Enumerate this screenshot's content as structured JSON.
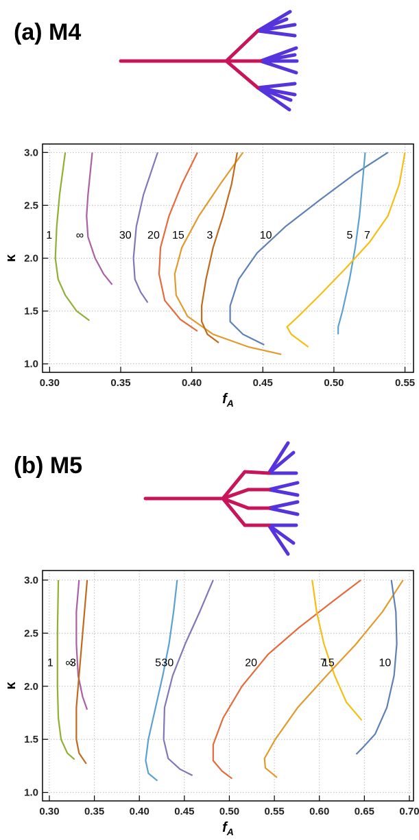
{
  "chart_data": [
    {
      "type": "line",
      "title": "(a) M4",
      "x_label": "f",
      "x_label_subscript": "A",
      "y_label": "κ",
      "xlim": [
        0.295,
        0.556
      ],
      "ylim": [
        0.92,
        3.08
      ],
      "grid": true,
      "xticks": [
        {
          "value": 0.3,
          "label": "0.30"
        },
        {
          "value": 0.35,
          "label": "0.35"
        },
        {
          "value": 0.4,
          "label": "0.40"
        },
        {
          "value": 0.45,
          "label": "0.45"
        },
        {
          "value": 0.5,
          "label": "0.50"
        },
        {
          "value": 0.55,
          "label": "0.55"
        }
      ],
      "yticks": [
        {
          "value": 1,
          "label": "1.0"
        },
        {
          "value": 1.5,
          "label": "1.5"
        },
        {
          "value": 2,
          "label": "2.0"
        },
        {
          "value": 2.5,
          "label": "2.5"
        },
        {
          "value": 3,
          "label": "3.0"
        }
      ],
      "series": [
        {
          "name": "1",
          "color": "#8fb032",
          "x": [
            0.311,
            0.307,
            0.305,
            0.304,
            0.306,
            0.311,
            0.319,
            0.328
          ],
          "values": [
            3.0,
            2.6,
            2.3,
            2.0,
            1.8,
            1.65,
            1.5,
            1.41
          ]
        },
        {
          "name": "∞",
          "color": "#a960a5",
          "x": [
            0.33,
            0.327,
            0.326,
            0.327,
            0.332,
            0.338,
            0.344
          ],
          "values": [
            3.0,
            2.6,
            2.4,
            2.2,
            2.0,
            1.85,
            1.75
          ]
        },
        {
          "name": "30",
          "color": "#8176b8",
          "x": [
            0.376,
            0.366,
            0.361,
            0.359,
            0.36,
            0.364,
            0.369
          ],
          "values": [
            3.0,
            2.6,
            2.3,
            2.0,
            1.8,
            1.68,
            1.58
          ]
        },
        {
          "name": "20",
          "color": "#e56a3c",
          "x": [
            0.404,
            0.393,
            0.384,
            0.378,
            0.377,
            0.381,
            0.392,
            0.404
          ],
          "values": [
            3.0,
            2.7,
            2.4,
            2.1,
            1.85,
            1.6,
            1.42,
            1.31
          ]
        },
        {
          "name": "15",
          "color": "#e19a2c",
          "x": [
            0.436,
            0.42,
            0.405,
            0.393,
            0.388,
            0.389,
            0.397,
            0.415,
            0.44,
            0.463
          ],
          "values": [
            3.0,
            2.7,
            2.4,
            2.1,
            1.85,
            1.65,
            1.45,
            1.28,
            1.16,
            1.09
          ]
        },
        {
          "name": "3",
          "color": "#c06a1e",
          "x": [
            0.432,
            0.428,
            0.422,
            0.415,
            0.41,
            0.407,
            0.407,
            0.411,
            0.419
          ],
          "values": [
            3.0,
            2.7,
            2.4,
            2.1,
            1.8,
            1.55,
            1.4,
            1.28,
            1.2
          ]
        },
        {
          "name": "10",
          "color": "#5e81b5",
          "x": [
            0.538,
            0.515,
            0.49,
            0.466,
            0.446,
            0.433,
            0.427,
            0.427,
            0.436,
            0.451
          ],
          "values": [
            3.0,
            2.8,
            2.55,
            2.3,
            2.05,
            1.8,
            1.55,
            1.4,
            1.28,
            1.18
          ]
        },
        {
          "name": "5",
          "color": "#5ba1cf",
          "x": [
            0.522,
            0.52,
            0.518,
            0.515,
            0.511,
            0.506,
            0.503,
            0.503
          ],
          "values": [
            3.0,
            2.7,
            2.4,
            2.1,
            1.8,
            1.5,
            1.35,
            1.28
          ]
        },
        {
          "name": "7",
          "color": "#f5be12",
          "x": [
            0.55,
            0.546,
            0.538,
            0.525,
            0.508,
            0.49,
            0.475,
            0.467,
            0.47,
            0.482
          ],
          "values": [
            3.0,
            2.7,
            2.4,
            2.15,
            1.9,
            1.65,
            1.45,
            1.35,
            1.28,
            1.16
          ]
        }
      ]
    },
    {
      "type": "line",
      "title": "(b) M5",
      "x_label": "f",
      "x_label_subscript": "A",
      "y_label": "κ",
      "xlim": [
        0.2924,
        0.7046
      ],
      "ylim": [
        0.92,
        3.09
      ],
      "grid": true,
      "xticks": [
        {
          "value": 0.3,
          "label": "0.30"
        },
        {
          "value": 0.35,
          "label": "0.35"
        },
        {
          "value": 0.4,
          "label": "0.40"
        },
        {
          "value": 0.45,
          "label": "0.45"
        },
        {
          "value": 0.5,
          "label": "0.50"
        },
        {
          "value": 0.55,
          "label": "0.55"
        },
        {
          "value": 0.6,
          "label": "0.60"
        },
        {
          "value": 0.65,
          "label": "0.65"
        },
        {
          "value": 0.7,
          "label": "0.70"
        }
      ],
      "yticks": [
        {
          "value": 1,
          "label": "1.0"
        },
        {
          "value": 1.5,
          "label": "1.5"
        },
        {
          "value": 2,
          "label": "2.0"
        },
        {
          "value": 2.5,
          "label": "2.5"
        },
        {
          "value": 3,
          "label": "3.0"
        }
      ],
      "series": [
        {
          "name": "1",
          "color": "#8fb032",
          "x": [
            0.31,
            0.309,
            0.309,
            0.31,
            0.313,
            0.32,
            0.328
          ],
          "values": [
            3.0,
            2.5,
            2.0,
            1.7,
            1.5,
            1.37,
            1.31
          ]
        },
        {
          "name": "∞",
          "color": "#a960a5",
          "x": [
            0.333,
            0.33,
            0.33,
            0.332,
            0.337,
            0.342
          ],
          "values": [
            3.0,
            2.7,
            2.4,
            2.1,
            1.9,
            1.78
          ]
        },
        {
          "name": "3",
          "color": "#c06a1e",
          "x": [
            0.342,
            0.339,
            0.336,
            0.333,
            0.33,
            0.33,
            0.333,
            0.341
          ],
          "values": [
            3.0,
            2.7,
            2.4,
            2.1,
            1.8,
            1.5,
            1.37,
            1.27
          ]
        },
        {
          "name": "5",
          "color": "#5ba1cf",
          "x": [
            0.442,
            0.438,
            0.433,
            0.426,
            0.418,
            0.41,
            0.407,
            0.41,
            0.42
          ],
          "values": [
            3.0,
            2.7,
            2.4,
            2.1,
            1.8,
            1.5,
            1.3,
            1.18,
            1.11
          ]
        },
        {
          "name": "30",
          "color": "#8176b8",
          "x": [
            0.482,
            0.467,
            0.451,
            0.437,
            0.428,
            0.427,
            0.432,
            0.445,
            0.459
          ],
          "values": [
            3.0,
            2.7,
            2.4,
            2.1,
            1.8,
            1.5,
            1.32,
            1.22,
            1.16
          ]
        },
        {
          "name": "20",
          "color": "#e56a3c",
          "x": [
            0.646,
            0.615,
            0.577,
            0.543,
            0.514,
            0.493,
            0.482,
            0.482,
            0.492,
            0.503
          ],
          "values": [
            3.0,
            2.8,
            2.55,
            2.3,
            2.0,
            1.7,
            1.45,
            1.3,
            1.2,
            1.13
          ]
        },
        {
          "name": "7",
          "color": "#f5be12",
          "x": [
            0.592,
            0.597,
            0.605,
            0.617,
            0.63,
            0.647
          ],
          "values": [
            3.0,
            2.7,
            2.4,
            2.1,
            1.85,
            1.68
          ]
        },
        {
          "name": "15",
          "color": "#e19a2c",
          "x": [
            0.693,
            0.67,
            0.641,
            0.608,
            0.576,
            0.551,
            0.539,
            0.54,
            0.553
          ],
          "values": [
            3.0,
            2.7,
            2.4,
            2.1,
            1.8,
            1.5,
            1.32,
            1.23,
            1.14
          ]
        },
        {
          "name": "10",
          "color": "#5e81b5",
          "x": [
            0.68,
            0.685,
            0.686,
            0.683,
            0.675,
            0.662,
            0.648,
            0.641
          ],
          "values": [
            3.0,
            2.7,
            2.4,
            2.1,
            1.8,
            1.55,
            1.42,
            1.36
          ]
        }
      ]
    }
  ]
}
